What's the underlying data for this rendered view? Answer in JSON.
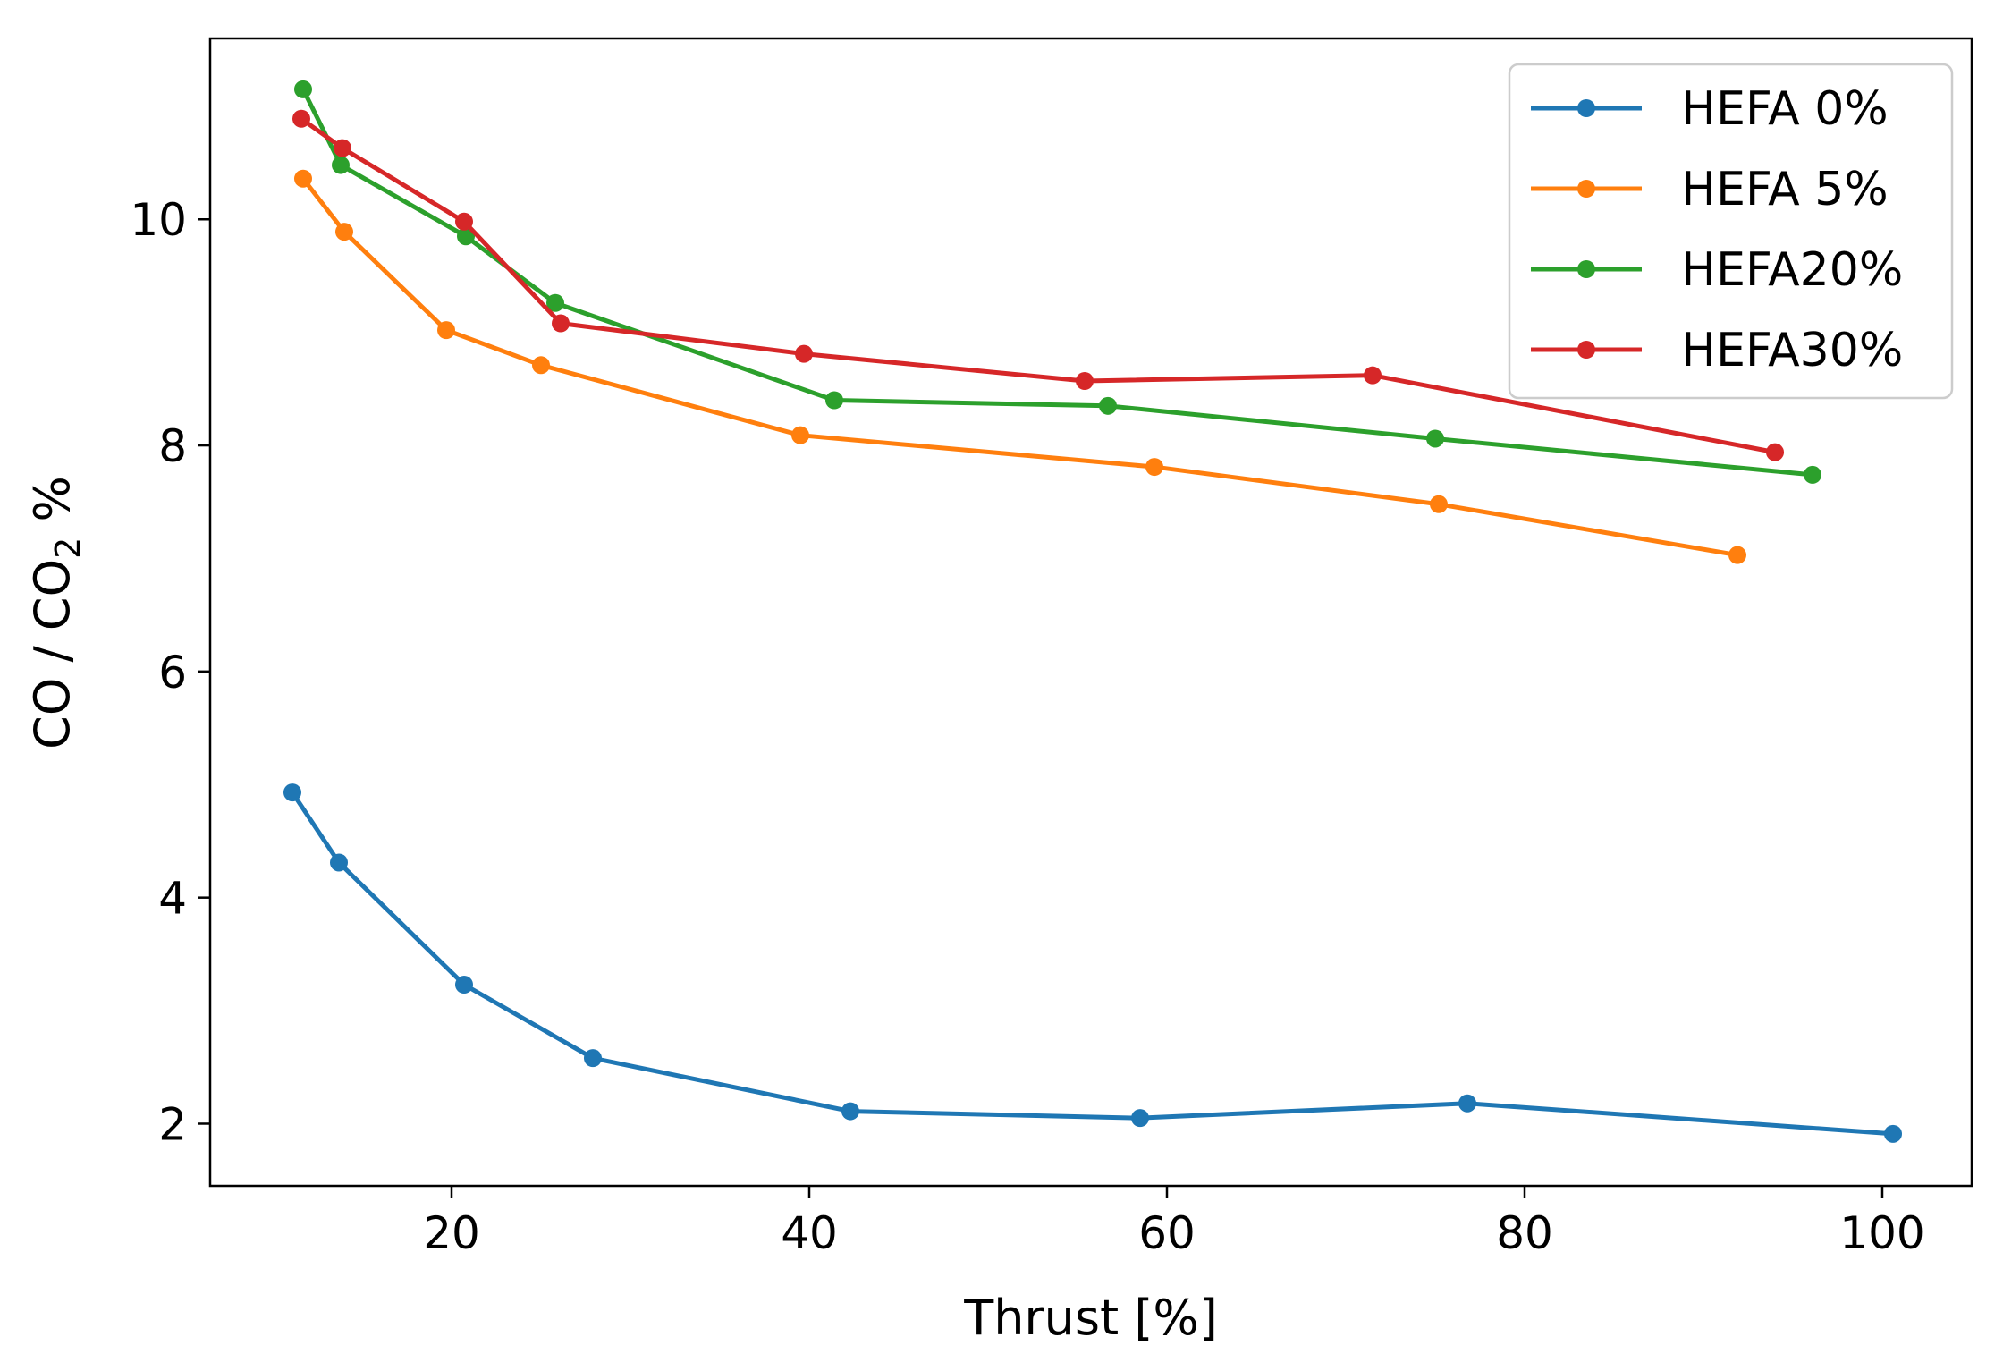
{
  "chart_data": {
    "type": "line",
    "title": "",
    "xlabel": "Thrust [%]",
    "ylabel": {
      "prefix": "CO / CO",
      "subscript": "2",
      "suffix": " %"
    },
    "xlim": [
      6.5,
      105.0
    ],
    "ylim": [
      1.45,
      11.6
    ],
    "xticks": [
      20,
      40,
      60,
      80,
      100
    ],
    "yticks": [
      2,
      4,
      6,
      8,
      10
    ],
    "grid": false,
    "legend_position": "top-right",
    "series": [
      {
        "name": "HEFA 0%",
        "color": "#1f77b4",
        "x": [
          11.1,
          13.7,
          20.7,
          27.9,
          42.3,
          58.5,
          76.8,
          100.6
        ],
        "y": [
          4.93,
          4.31,
          3.23,
          2.58,
          2.11,
          2.05,
          2.18,
          1.91
        ]
      },
      {
        "name": "HEFA 5%",
        "color": "#ff7f0e",
        "x": [
          11.7,
          14.0,
          19.7,
          25.0,
          39.5,
          59.3,
          75.2,
          91.9
        ],
        "y": [
          10.36,
          9.89,
          9.02,
          8.71,
          8.09,
          7.81,
          7.48,
          7.03
        ]
      },
      {
        "name": "HEFA20%",
        "color": "#2ca02c",
        "x": [
          11.7,
          13.8,
          20.8,
          25.8,
          41.4,
          56.7,
          75.0,
          96.1
        ],
        "y": [
          11.15,
          10.48,
          9.85,
          9.26,
          8.4,
          8.35,
          8.06,
          7.74
        ]
      },
      {
        "name": "HEFA30%",
        "color": "#d62728",
        "x": [
          11.6,
          13.9,
          20.7,
          26.1,
          39.7,
          55.4,
          71.5,
          94.0
        ],
        "y": [
          10.89,
          10.63,
          9.98,
          9.08,
          8.81,
          8.57,
          8.62,
          7.94
        ]
      }
    ]
  }
}
